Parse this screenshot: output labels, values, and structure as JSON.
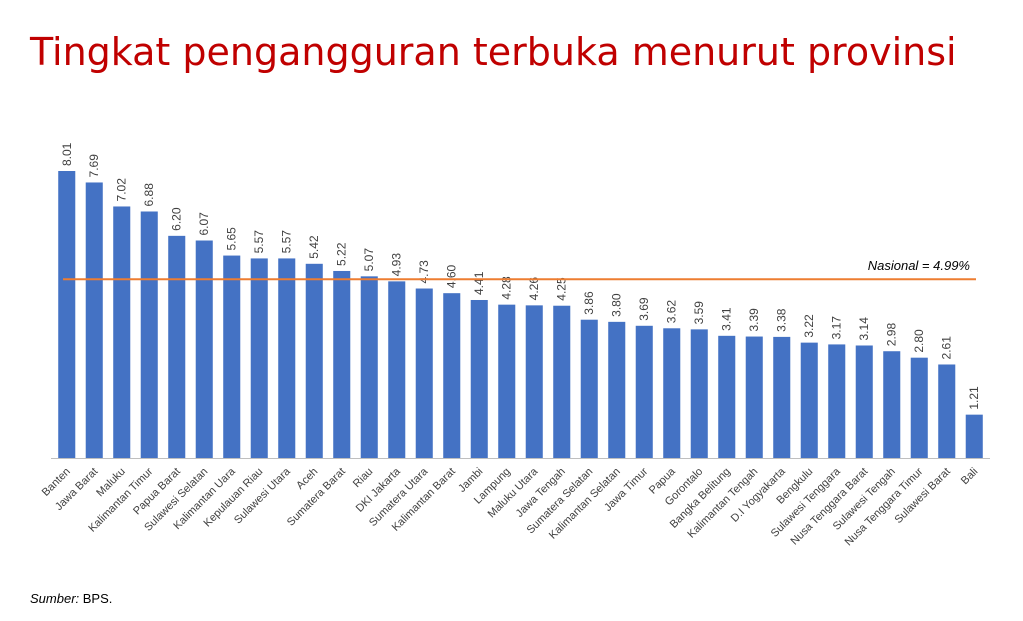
{
  "title": "Tingkat pengangguran terbuka menurut provinsi",
  "source": {
    "label": "Sumber:",
    "text": " BPS."
  },
  "reference_line": {
    "label": "Nasional = 4.99%",
    "value": 4.99,
    "color": "#ed7d31"
  },
  "colors": {
    "bar": "#4472c4",
    "title": "#c00000",
    "axis": "#bfbfbf",
    "text": "#404040"
  },
  "chart_data": {
    "type": "bar",
    "title": "Tingkat pengangguran terbuka menurut provinsi",
    "xlabel": "",
    "ylabel": "",
    "ylim": [
      0,
      8.5
    ],
    "grid": false,
    "legend": "none",
    "categories": [
      "Banten",
      "Jawa Barat",
      "Maluku",
      "Kalimantan Timur",
      "Papua Barat",
      "Sulawesi Selatan",
      "Kalimantan Uara",
      "Kepulauan Riau",
      "Sulawesi Utara",
      "Aceh",
      "Sumatera Barat",
      "Riau",
      "DKI Jakarta",
      "Sumatera Utara",
      "Kalimantan Barat",
      "Jambi",
      "Lampung",
      "Maluku Utara",
      "Jawa Tengah",
      "Sumatera Selatan",
      "Kalimantan Selatan",
      "Jawa Timur",
      "Papua",
      "Gorontalo",
      "Bangka Belitung",
      "Kalimantan Tengah",
      "D.I Yogyakarta",
      "Bengkulu",
      "Sulawesi Tenggara",
      "Nusa Tenggara Barat",
      "Sulawesi Tengah",
      "Nusa Tenggara Timur",
      "Sulawesi Barat",
      "Bali"
    ],
    "values": [
      8.01,
      7.69,
      7.02,
      6.88,
      6.2,
      6.07,
      5.65,
      5.57,
      5.57,
      5.42,
      5.22,
      5.07,
      4.93,
      4.73,
      4.6,
      4.41,
      4.28,
      4.26,
      4.25,
      3.86,
      3.8,
      3.69,
      3.62,
      3.59,
      3.41,
      3.39,
      3.38,
      3.22,
      3.17,
      3.14,
      2.98,
      2.8,
      2.61,
      1.21
    ],
    "labels": [
      "8.01",
      "7.69",
      "7.02",
      "6.88",
      "6.20",
      "6.07",
      "5.65",
      "5.57",
      "5.57",
      "5.42",
      "5.22",
      "5.07",
      "4.93",
      "4.73",
      "4.60",
      "4.41",
      "4.28",
      "4.26",
      "4.25",
      "3.86",
      "3.80",
      "3.69",
      "3.62",
      "3.59",
      "3.41",
      "3.39",
      "3.38",
      "3.22",
      "3.17",
      "3.14",
      "2.98",
      "2.80",
      "2.61",
      "1.21"
    ]
  }
}
